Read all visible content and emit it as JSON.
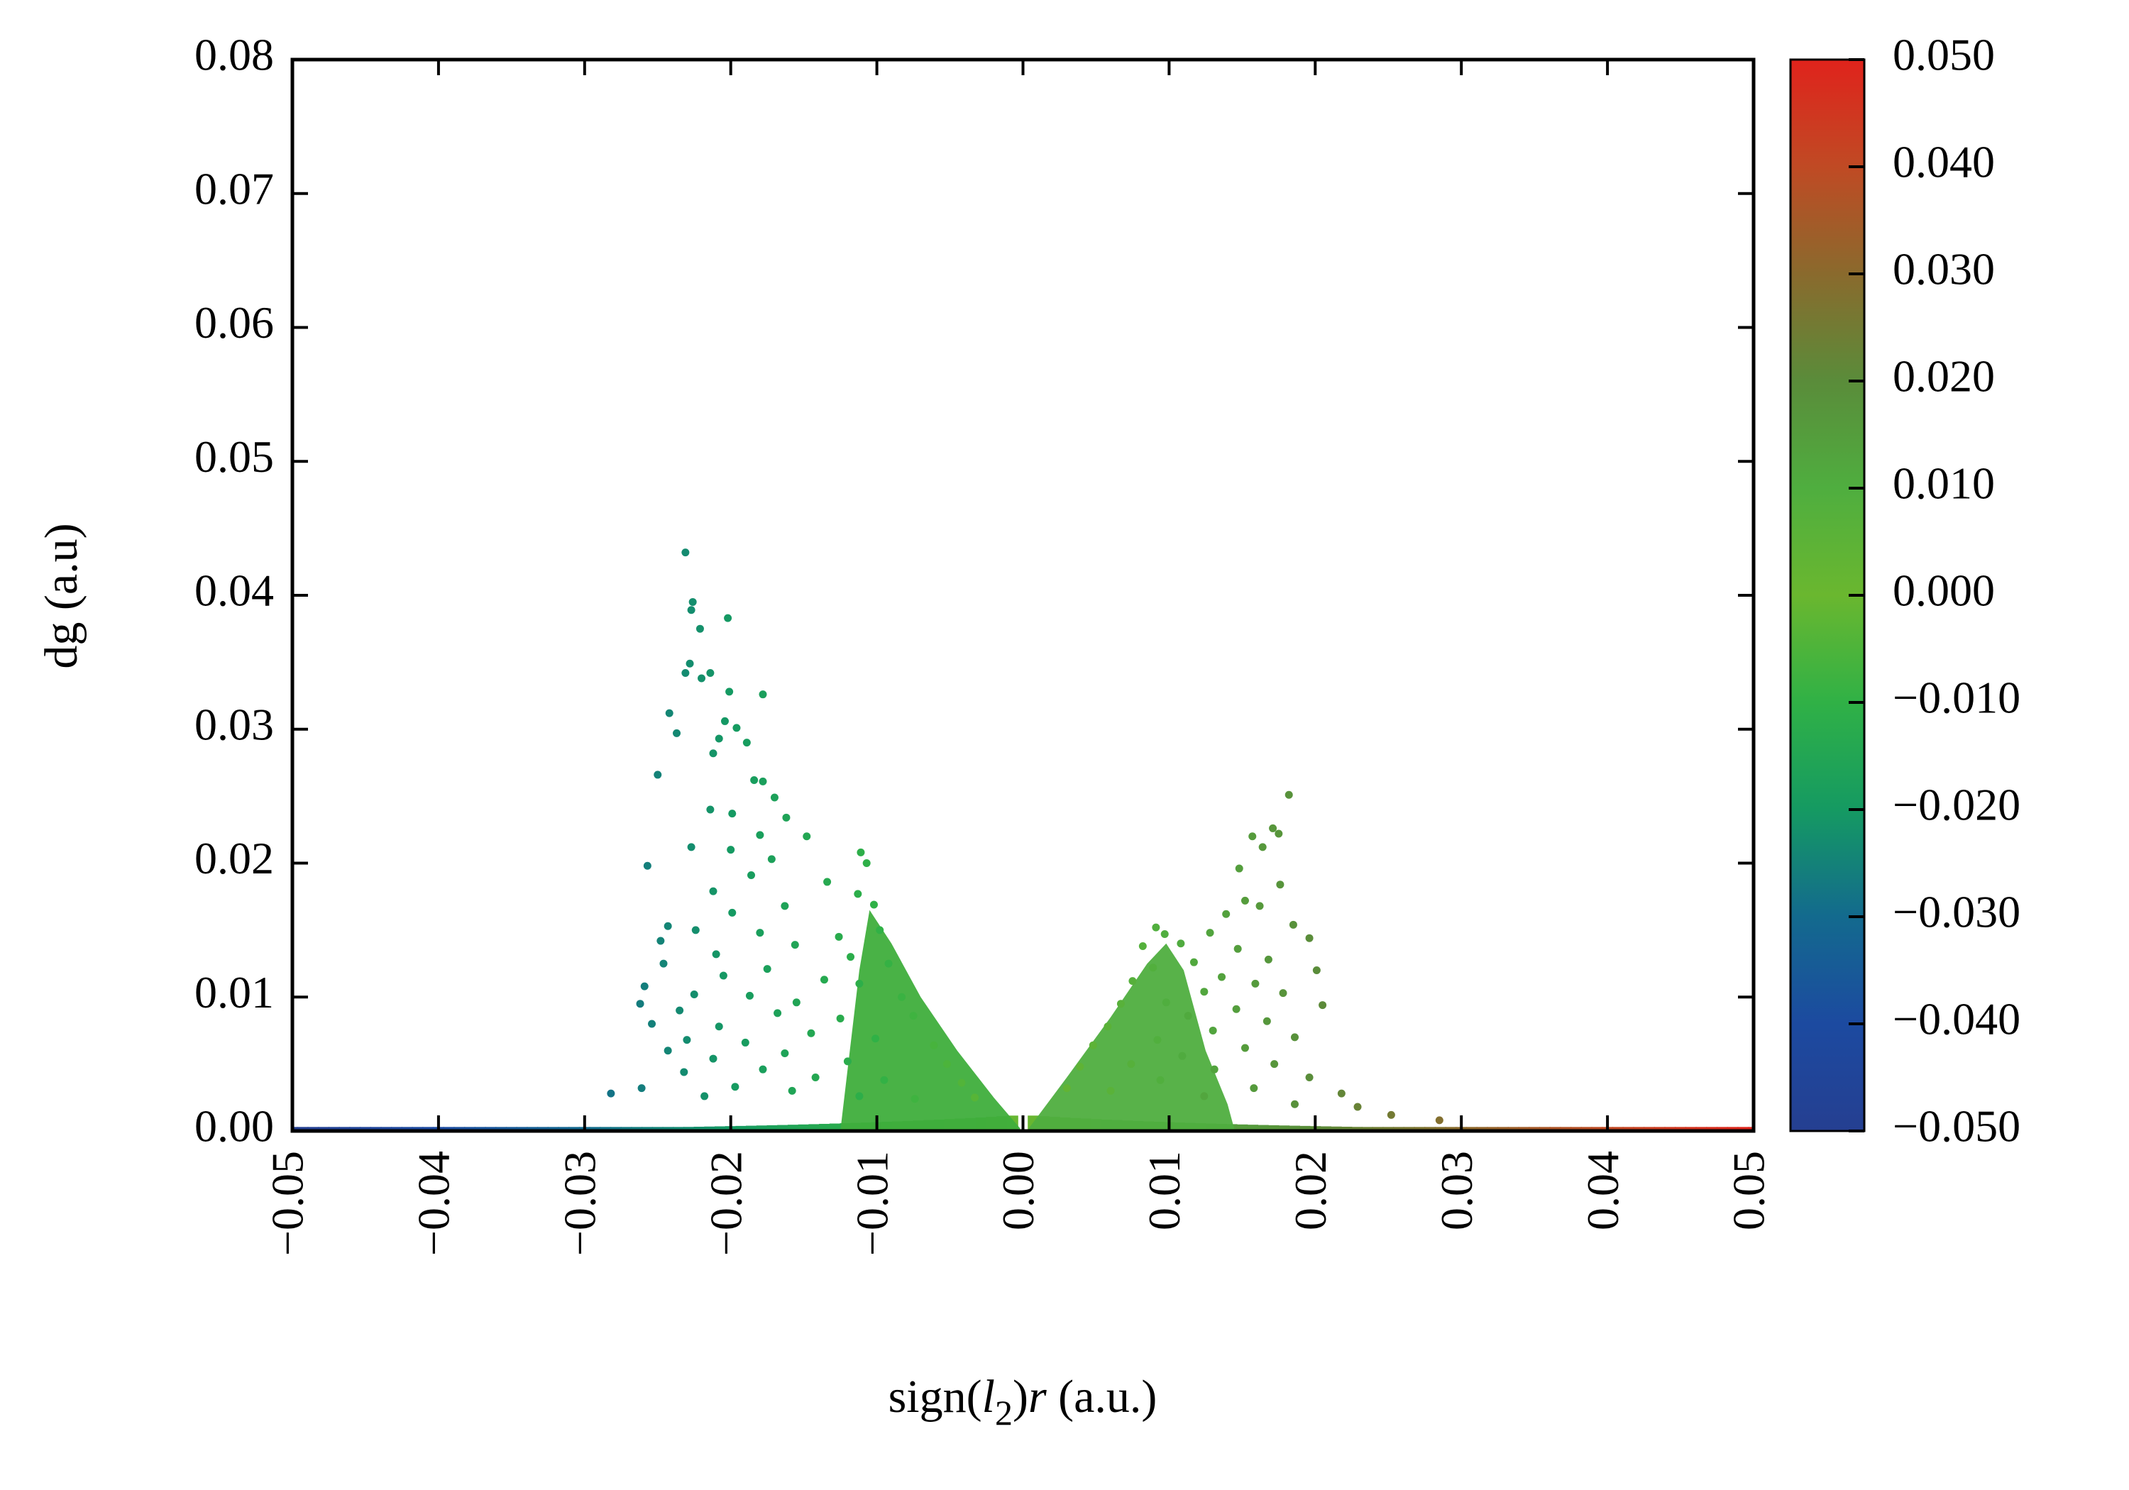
{
  "chart_data": {
    "type": "scatter",
    "title": "",
    "xlabel": {
      "prefix": "sign(",
      "var": "l",
      "sub": "2",
      "mid": ")",
      "r": "r",
      "suffix": " (a.u.)"
    },
    "ylabel": "dg (a.u)",
    "xlim": [
      -0.05,
      0.05
    ],
    "ylim": [
      0,
      0.08
    ],
    "x_ticks": [
      "−0.05",
      "−0.04",
      "−0.03",
      "−0.02",
      "−0.01",
      "0.00",
      "0.01",
      "0.02",
      "0.03",
      "0.04",
      "0.05"
    ],
    "x_tick_values": [
      -0.05,
      -0.04,
      -0.03,
      -0.02,
      -0.01,
      0.0,
      0.01,
      0.02,
      0.03,
      0.04,
      0.05
    ],
    "y_ticks": [
      "0.00",
      "0.01",
      "0.02",
      "0.03",
      "0.04",
      "0.05",
      "0.06",
      "0.07",
      "0.08"
    ],
    "y_tick_values": [
      0,
      0.01,
      0.02,
      0.03,
      0.04,
      0.05,
      0.06,
      0.07,
      0.08
    ],
    "grid": false,
    "legend": "none",
    "colorbar": {
      "range": [
        -0.05,
        0.05
      ],
      "ticks": [
        "0.050",
        "0.040",
        "0.030",
        "0.020",
        "0.010",
        "0.000",
        "−0.010",
        "−0.020",
        "−0.030",
        "−0.040",
        "−0.050"
      ],
      "tick_values": [
        0.05,
        0.04,
        0.03,
        0.02,
        0.01,
        0.0,
        -0.01,
        -0.02,
        -0.03,
        -0.04,
        -0.05
      ],
      "colors": [
        {
          "value": -0.05,
          "color": "#253f91"
        },
        {
          "value": -0.04,
          "color": "#1c4aa0"
        },
        {
          "value": -0.03,
          "color": "#136a8e"
        },
        {
          "value": -0.02,
          "color": "#159a62"
        },
        {
          "value": -0.01,
          "color": "#30b146"
        },
        {
          "value": 0.0,
          "color": "#6ab72f"
        },
        {
          "value": 0.01,
          "color": "#4fae3f"
        },
        {
          "value": 0.02,
          "color": "#5a8c3a"
        },
        {
          "value": 0.03,
          "color": "#8a6a2d"
        },
        {
          "value": 0.04,
          "color": "#c04a24"
        },
        {
          "value": 0.05,
          "color": "#e0231c"
        }
      ]
    },
    "series": [
      {
        "points": [
          [
            -0.0231,
            0.0432
          ],
          [
            -0.0226,
            0.0395
          ],
          [
            -0.0227,
            0.0389
          ],
          [
            -0.0202,
            0.0383
          ],
          [
            -0.0221,
            0.0375
          ],
          [
            -0.0231,
            0.0342
          ],
          [
            -0.0228,
            0.0349
          ],
          [
            -0.0214,
            0.0342
          ],
          [
            -0.022,
            0.0338
          ],
          [
            -0.0201,
            0.0328
          ],
          [
            -0.0178,
            0.0326
          ],
          [
            -0.0242,
            0.0312
          ],
          [
            -0.0237,
            0.0297
          ],
          [
            -0.0204,
            0.0306
          ],
          [
            -0.0196,
            0.0301
          ],
          [
            -0.0208,
            0.0293
          ],
          [
            -0.0189,
            0.029
          ],
          [
            -0.0212,
            0.0282
          ],
          [
            -0.025,
            0.0266
          ],
          [
            -0.0184,
            0.0262
          ],
          [
            -0.0178,
            0.0261
          ],
          [
            -0.017,
            0.0249
          ],
          [
            -0.0214,
            0.024
          ],
          [
            -0.0199,
            0.0237
          ],
          [
            -0.0162,
            0.0234
          ],
          [
            -0.018,
            0.0221
          ],
          [
            -0.0148,
            0.022
          ],
          [
            -0.0227,
            0.0212
          ],
          [
            -0.02,
            0.021
          ],
          [
            -0.0172,
            0.0203
          ],
          [
            -0.0257,
            0.0198
          ],
          [
            -0.0111,
            0.0208
          ],
          [
            -0.0107,
            0.02
          ],
          [
            -0.0186,
            0.0191
          ],
          [
            -0.0134,
            0.0186
          ],
          [
            -0.0212,
            0.0179
          ],
          [
            -0.0113,
            0.0177
          ],
          [
            -0.0163,
            0.0168
          ],
          [
            -0.0199,
            0.0163
          ],
          [
            -0.0102,
            0.0169
          ],
          [
            -0.0243,
            0.0153
          ],
          [
            -0.0224,
            0.015
          ],
          [
            -0.018,
            0.0148
          ],
          [
            -0.0126,
            0.0145
          ],
          [
            -0.0248,
            0.0142
          ],
          [
            -0.0098,
            0.015
          ],
          [
            -0.0156,
            0.0139
          ],
          [
            -0.021,
            0.0132
          ],
          [
            -0.0118,
            0.013
          ],
          [
            -0.0246,
            0.0125
          ],
          [
            -0.0175,
            0.0121
          ],
          [
            -0.0092,
            0.0125
          ],
          [
            -0.0205,
            0.0116
          ],
          [
            -0.0136,
            0.0113
          ],
          [
            -0.0259,
            0.0108
          ],
          [
            -0.0112,
            0.011
          ],
          [
            -0.0225,
            0.0102
          ],
          [
            -0.0187,
            0.0101
          ],
          [
            -0.0155,
            0.0096
          ],
          [
            -0.0262,
            0.0095
          ],
          [
            -0.0083,
            0.01
          ],
          [
            -0.0235,
            0.009
          ],
          [
            -0.0168,
            0.0088
          ],
          [
            -0.0125,
            0.0084
          ],
          [
            -0.0254,
            0.008
          ],
          [
            -0.0208,
            0.0078
          ],
          [
            -0.0075,
            0.0086
          ],
          [
            -0.0145,
            0.0073
          ],
          [
            -0.023,
            0.0068
          ],
          [
            -0.019,
            0.0066
          ],
          [
            -0.0101,
            0.0069
          ],
          [
            -0.0243,
            0.006
          ],
          [
            -0.0163,
            0.0058
          ],
          [
            -0.0061,
            0.0064
          ],
          [
            -0.0212,
            0.0054
          ],
          [
            -0.012,
            0.0052
          ],
          [
            -0.0178,
            0.0046
          ],
          [
            -0.0052,
            0.005
          ],
          [
            -0.0232,
            0.0044
          ],
          [
            -0.0142,
            0.004
          ],
          [
            -0.0095,
            0.0038
          ],
          [
            -0.0261,
            0.0032
          ],
          [
            -0.0197,
            0.0033
          ],
          [
            -0.0042,
            0.0036
          ],
          [
            -0.0158,
            0.003
          ],
          [
            -0.0282,
            0.0028
          ],
          [
            -0.0218,
            0.0026
          ],
          [
            -0.0112,
            0.0026
          ],
          [
            -0.0074,
            0.0024
          ],
          [
            -0.0033,
            0.0025
          ],
          [
            0.0182,
            0.0251
          ],
          [
            0.0171,
            0.0226
          ],
          [
            0.0175,
            0.0222
          ],
          [
            0.0157,
            0.022
          ],
          [
            0.0164,
            0.0212
          ],
          [
            0.0148,
            0.0196
          ],
          [
            0.0176,
            0.0184
          ],
          [
            0.0152,
            0.0172
          ],
          [
            0.0162,
            0.0168
          ],
          [
            0.0185,
            0.0154
          ],
          [
            0.0139,
            0.0162
          ],
          [
            0.0091,
            0.0152
          ],
          [
            0.0097,
            0.0147
          ],
          [
            0.0128,
            0.0148
          ],
          [
            0.0196,
            0.0144
          ],
          [
            0.0108,
            0.014
          ],
          [
            0.0147,
            0.0136
          ],
          [
            0.0082,
            0.0138
          ],
          [
            0.0168,
            0.0128
          ],
          [
            0.0117,
            0.0126
          ],
          [
            0.0201,
            0.012
          ],
          [
            0.0089,
            0.0122
          ],
          [
            0.0136,
            0.0115
          ],
          [
            0.0159,
            0.011
          ],
          [
            0.0075,
            0.0112
          ],
          [
            0.0124,
            0.0104
          ],
          [
            0.0178,
            0.0103
          ],
          [
            0.0205,
            0.0094
          ],
          [
            0.0098,
            0.0096
          ],
          [
            0.0146,
            0.0091
          ],
          [
            0.0067,
            0.0095
          ],
          [
            0.0113,
            0.0086
          ],
          [
            0.0167,
            0.0082
          ],
          [
            0.013,
            0.0075
          ],
          [
            0.0058,
            0.0078
          ],
          [
            0.0186,
            0.007
          ],
          [
            0.0092,
            0.0068
          ],
          [
            0.0152,
            0.0062
          ],
          [
            0.0048,
            0.0064
          ],
          [
            0.0109,
            0.0056
          ],
          [
            0.0172,
            0.005
          ],
          [
            0.0074,
            0.005
          ],
          [
            0.0131,
            0.0046
          ],
          [
            0.0039,
            0.0048
          ],
          [
            0.0196,
            0.004
          ],
          [
            0.0094,
            0.0038
          ],
          [
            0.0158,
            0.0032
          ],
          [
            0.0218,
            0.0028
          ],
          [
            0.006,
            0.003
          ],
          [
            0.0124,
            0.0026
          ],
          [
            0.003,
            0.0032
          ],
          [
            0.0229,
            0.0018
          ],
          [
            0.0186,
            0.002
          ],
          [
            0.0252,
            0.0012
          ],
          [
            0.0285,
            0.0008
          ]
        ]
      }
    ]
  }
}
